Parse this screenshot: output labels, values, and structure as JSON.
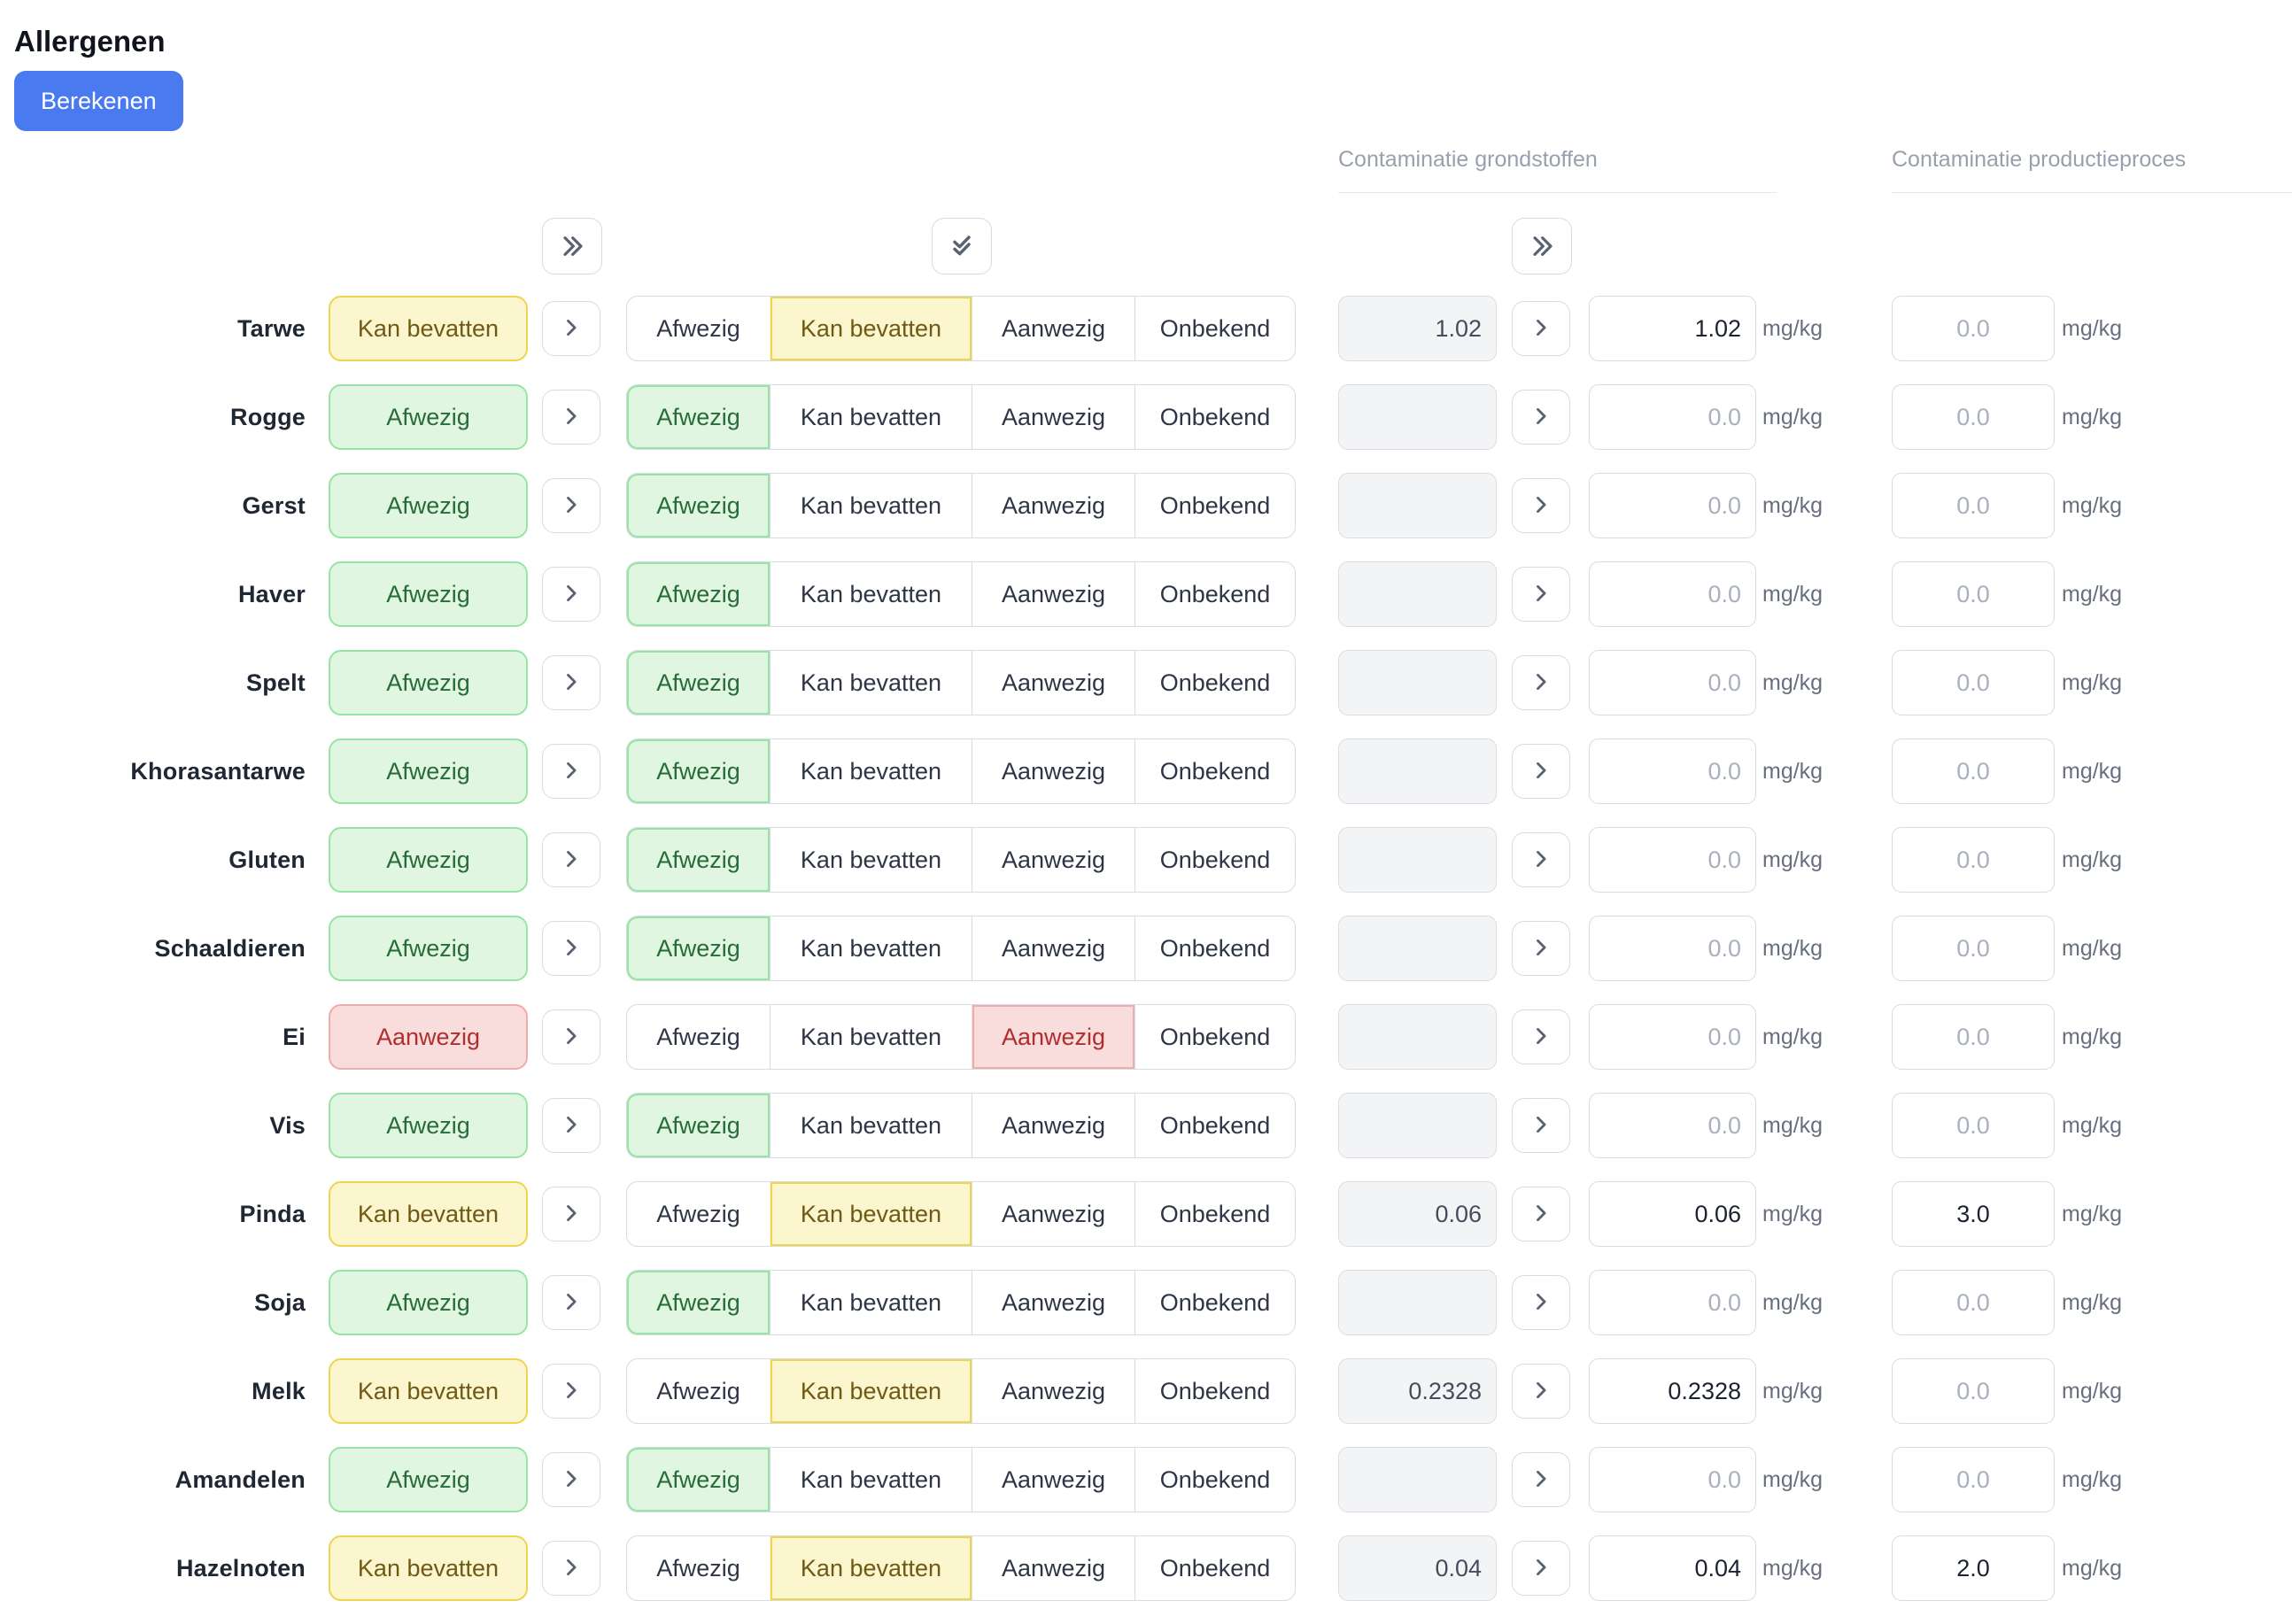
{
  "page": {
    "title": "Allergenen"
  },
  "toolbar": {
    "calculate_label": "Berekenen"
  },
  "columns": {
    "grondstoffen": "Contaminatie grondstoffen",
    "productieproces": "Contaminatie productieproces"
  },
  "icons": {
    "copy_all_status": "double-chevron-right",
    "apply_all": "double-check",
    "copy_all_values": "double-chevron-right",
    "copy_row": "chevron-right"
  },
  "units": {
    "mgkg": "mg/kg"
  },
  "inputs": {
    "placeholder": "0.0"
  },
  "segments": [
    "Afwezig",
    "Kan bevatten",
    "Aanwezig",
    "Onbekend"
  ],
  "status_colors": {
    "yellow": {
      "background": "#fbf6ce",
      "border": "#edd54f",
      "text": "#6f5915"
    },
    "green": {
      "background": "#e0f6e1",
      "border": "#97e4a4",
      "text": "#276b38"
    },
    "red": {
      "background": "#f9dcdc",
      "border": "#f0abab",
      "text": "#af2e2e"
    },
    "accent_blue": "#4a7aef"
  },
  "rows": [
    {
      "label": "Tarwe",
      "status": "Kan bevatten",
      "color": "yellow",
      "selected": 1,
      "raw": "1.02",
      "value": "1.02",
      "proc": ""
    },
    {
      "label": "Rogge",
      "status": "Afwezig",
      "color": "green",
      "selected": 0,
      "raw": "",
      "value": "",
      "proc": ""
    },
    {
      "label": "Gerst",
      "status": "Afwezig",
      "color": "green",
      "selected": 0,
      "raw": "",
      "value": "",
      "proc": ""
    },
    {
      "label": "Haver",
      "status": "Afwezig",
      "color": "green",
      "selected": 0,
      "raw": "",
      "value": "",
      "proc": ""
    },
    {
      "label": "Spelt",
      "status": "Afwezig",
      "color": "green",
      "selected": 0,
      "raw": "",
      "value": "",
      "proc": ""
    },
    {
      "label": "Khorasantarwe",
      "status": "Afwezig",
      "color": "green",
      "selected": 0,
      "raw": "",
      "value": "",
      "proc": ""
    },
    {
      "label": "Gluten",
      "status": "Afwezig",
      "color": "green",
      "selected": 0,
      "raw": "",
      "value": "",
      "proc": ""
    },
    {
      "label": "Schaaldieren",
      "status": "Afwezig",
      "color": "green",
      "selected": 0,
      "raw": "",
      "value": "",
      "proc": ""
    },
    {
      "label": "Ei",
      "status": "Aanwezig",
      "color": "red",
      "selected": 2,
      "raw": "",
      "value": "",
      "proc": ""
    },
    {
      "label": "Vis",
      "status": "Afwezig",
      "color": "green",
      "selected": 0,
      "raw": "",
      "value": "",
      "proc": ""
    },
    {
      "label": "Pinda",
      "status": "Kan bevatten",
      "color": "yellow",
      "selected": 1,
      "raw": "0.06",
      "value": "0.06",
      "proc": "3.0"
    },
    {
      "label": "Soja",
      "status": "Afwezig",
      "color": "green",
      "selected": 0,
      "raw": "",
      "value": "",
      "proc": ""
    },
    {
      "label": "Melk",
      "status": "Kan bevatten",
      "color": "yellow",
      "selected": 1,
      "raw": "0.2328",
      "value": "0.2328",
      "proc": ""
    },
    {
      "label": "Amandelen",
      "status": "Afwezig",
      "color": "green",
      "selected": 0,
      "raw": "",
      "value": "",
      "proc": ""
    },
    {
      "label": "Hazelnoten",
      "status": "Kan bevatten",
      "color": "yellow",
      "selected": 1,
      "raw": "0.04",
      "value": "0.04",
      "proc": "2.0"
    }
  ]
}
